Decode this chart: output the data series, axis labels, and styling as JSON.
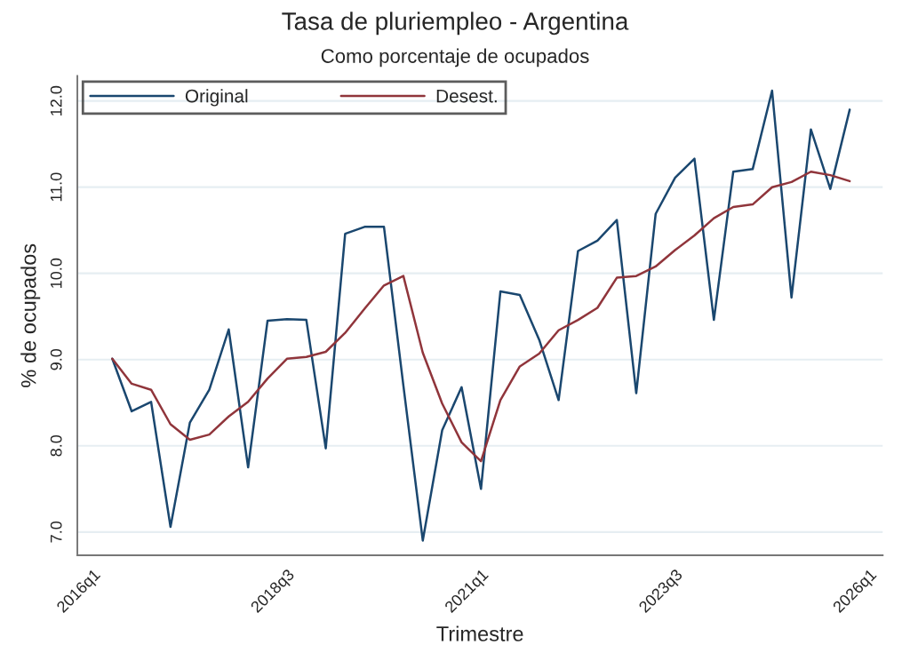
{
  "chart_data": {
    "type": "line",
    "title": "Tasa de pluriempleo - Argentina",
    "subtitle": "Como porcentaje de ocupados",
    "xlabel": "Trimestre",
    "ylabel": "% de ocupados",
    "categories": [
      "2016q1",
      null,
      null,
      null,
      null,
      null,
      null,
      null,
      null,
      null,
      "2018q3",
      null,
      null,
      null,
      null,
      null,
      null,
      null,
      null,
      null,
      "2021q1",
      null,
      null,
      null,
      null,
      null,
      null,
      null,
      null,
      null,
      "2023q3",
      null,
      null,
      null,
      null,
      null,
      null,
      null,
      null,
      null,
      "2026q1"
    ],
    "series": [
      {
        "name": "Original",
        "color": "#1a476f",
        "values": [
          null,
          9.01,
          8.4,
          8.51,
          7.06,
          8.27,
          8.65,
          9.35,
          7.75,
          9.45,
          9.47,
          9.46,
          7.97,
          10.46,
          10.54,
          10.54,
          8.7,
          6.9,
          8.18,
          8.68,
          7.5,
          9.79,
          9.75,
          9.23,
          8.53,
          10.26,
          10.38,
          10.62,
          8.61,
          10.69,
          11.11,
          11.33,
          9.46,
          11.18,
          11.21,
          12.12,
          9.72,
          11.67,
          10.98,
          11.9,
          null
        ]
      },
      {
        "name": "Desest.",
        "color": "#90353b",
        "values": [
          null,
          9.01,
          8.72,
          8.65,
          8.25,
          8.07,
          8.13,
          8.34,
          8.51,
          8.78,
          9.01,
          9.03,
          9.09,
          9.31,
          9.59,
          9.86,
          9.97,
          9.08,
          8.49,
          8.04,
          7.82,
          8.53,
          8.92,
          9.07,
          9.34,
          9.46,
          9.6,
          9.95,
          9.97,
          10.08,
          10.27,
          10.44,
          10.64,
          10.77,
          10.8,
          11.0,
          11.06,
          11.18,
          11.14,
          11.07,
          null
        ]
      }
    ],
    "ylim": [
      6.73,
      12.29
    ],
    "yticks": [
      {
        "value": 7,
        "label": "7.0"
      },
      {
        "value": 8,
        "label": "8.0"
      },
      {
        "value": 9,
        "label": "9.0"
      },
      {
        "value": 10,
        "label": "10.0"
      },
      {
        "value": 11,
        "label": "11.0"
      },
      {
        "value": 12,
        "label": "12.0"
      }
    ],
    "grid": "y",
    "legend": "top left"
  }
}
